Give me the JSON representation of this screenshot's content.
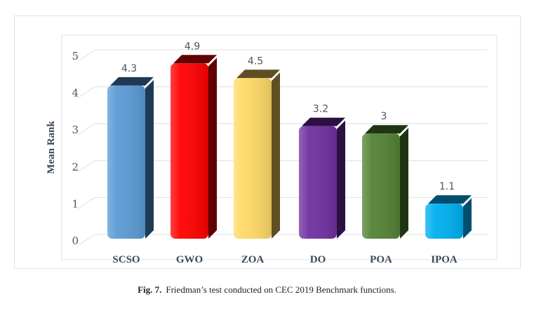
{
  "chart_data": {
    "type": "bar",
    "title": "",
    "xlabel": "",
    "ylabel": "Mean Rank",
    "categories": [
      "SCSO",
      "GWO",
      "ZOA",
      "DO",
      "POA",
      "IPOA"
    ],
    "values": [
      4.3,
      4.9,
      4.5,
      3.2,
      3,
      1.1
    ],
    "data_labels": [
      "4.3",
      "4.9",
      "4.5",
      "3.2",
      "3",
      "1.1"
    ],
    "ylim": [
      0,
      5
    ],
    "yticks": [
      "0",
      "1",
      "2",
      "3",
      "4",
      "5"
    ],
    "grid": true,
    "colors": [
      "#5b9bd5",
      "#ff0000",
      "#ffd966",
      "#7030a0",
      "#548235",
      "#00b0f0"
    ],
    "side_colors": [
      "#1f3a55",
      "#600000",
      "#5e4e22",
      "#2c1044",
      "#1f3512",
      "#004f6e"
    ]
  },
  "caption": {
    "label": "Fig. 7.",
    "text": "Friedman’s test conducted on CEC 2019 Benchmark functions."
  }
}
